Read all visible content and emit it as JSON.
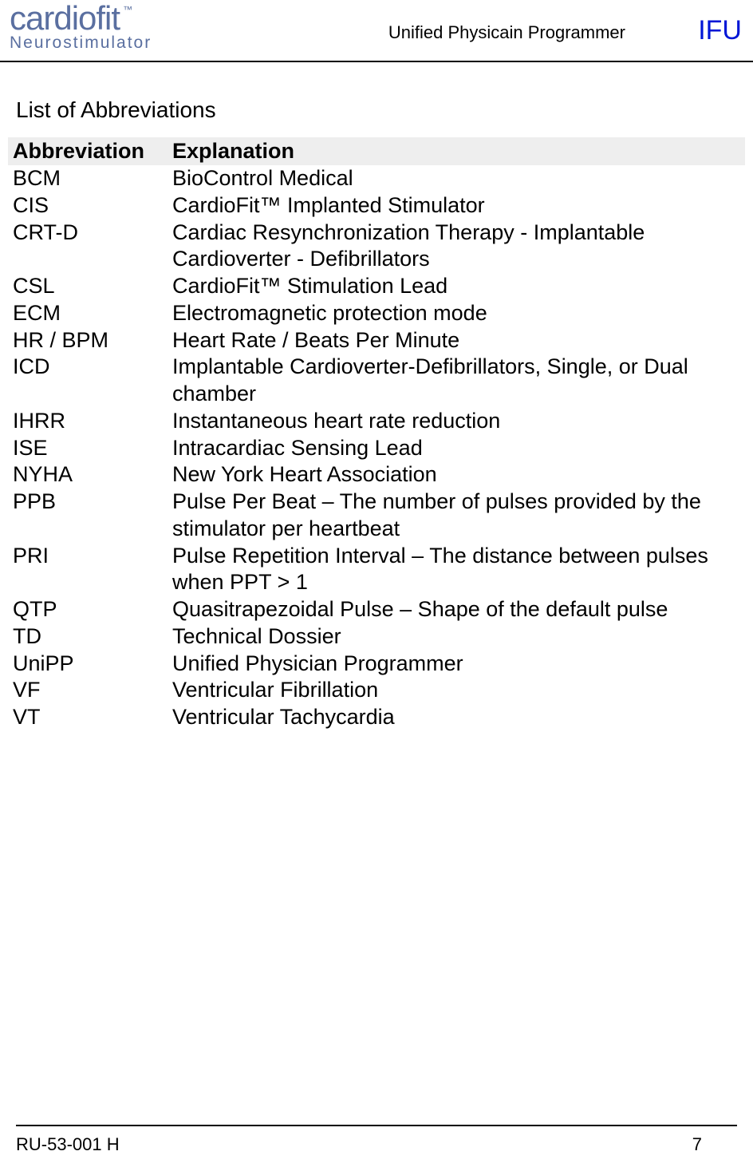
{
  "header": {
    "logo_main": "cardiofit",
    "logo_tm": "™",
    "logo_sub": "Neurostimulator",
    "center_text": "Unified Physicain Programmer",
    "right_text": "IFU",
    "logo_color": "#5a6fa0",
    "ifu_color": "#0016d6"
  },
  "section_title": "List of Abbreviations",
  "table": {
    "header_bg": "#eeeeee",
    "columns": [
      "Abbreviation",
      "Explanation"
    ],
    "rows": [
      [
        "BCM",
        "BioControl Medical"
      ],
      [
        "CIS",
        "CardioFit™ Implanted Stimulator"
      ],
      [
        "CRT-D",
        "Cardiac Resynchronization Therapy - Implantable Cardioverter - Defibrillators"
      ],
      [
        "CSL",
        "CardioFit™ Stimulation Lead"
      ],
      [
        "ECM",
        "Electromagnetic protection mode"
      ],
      [
        "HR / BPM",
        "Heart Rate / Beats Per Minute"
      ],
      [
        "ICD",
        "Implantable Cardioverter-Defibrillators, Single, or Dual chamber"
      ],
      [
        "IHRR",
        "Instantaneous heart rate reduction"
      ],
      [
        "ISE",
        "Intracardiac Sensing Lead"
      ],
      [
        "NYHA",
        "New York Heart Association"
      ],
      [
        "PPB",
        "Pulse Per Beat – The number of pulses provided by the stimulator per heartbeat"
      ],
      [
        "PRI",
        "Pulse Repetition Interval – The distance between pulses when PPT > 1"
      ],
      [
        "QTP",
        "Quasitrapezoidal Pulse – Shape of the default pulse"
      ],
      [
        "TD",
        "Technical Dossier"
      ],
      [
        "UniPP",
        "Unified Physician Programmer"
      ],
      [
        "VF",
        "Ventricular Fibrillation"
      ],
      [
        "VT",
        "Ventricular Tachycardia"
      ]
    ]
  },
  "footer": {
    "doc_id": "RU-53-001 H",
    "page_num": "7"
  }
}
